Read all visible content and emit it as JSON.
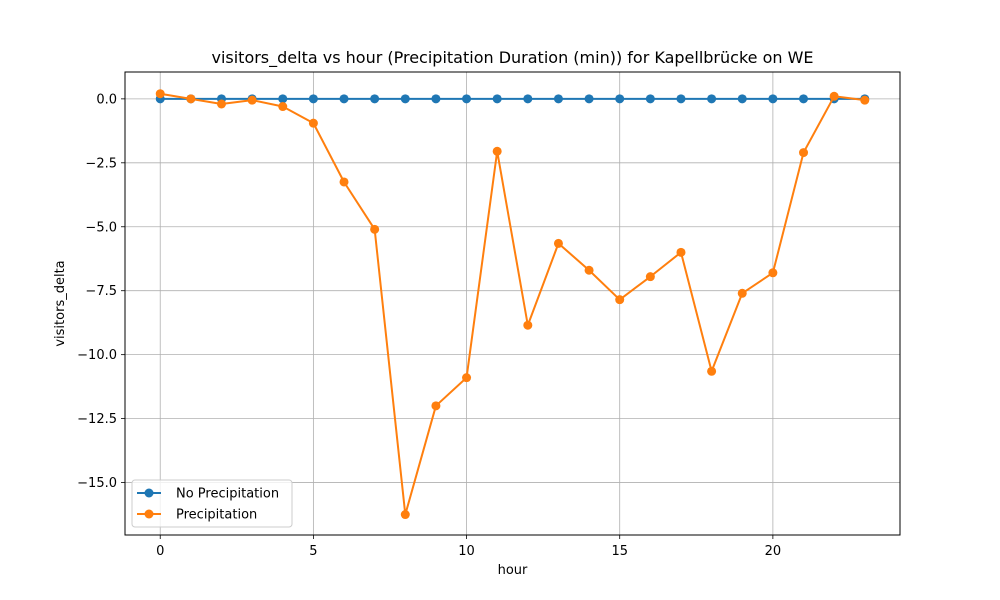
{
  "chart_data": {
    "type": "line",
    "title": "visitors_delta vs hour (Precipitation Duration (min)) for Kapellbrücke on WE",
    "xlabel": "hour",
    "ylabel": "visitors_delta",
    "xlim": [
      -1.15,
      24.15
    ],
    "ylim": [
      -17.05,
      1.05
    ],
    "xticks": [
      0,
      5,
      10,
      15,
      20
    ],
    "yticks": [
      0.0,
      -2.5,
      -5.0,
      -7.5,
      -10.0,
      -12.5,
      -15.0
    ],
    "xtick_labels": [
      "0",
      "5",
      "10",
      "15",
      "20"
    ],
    "ytick_labels": [
      "0.0",
      "−2.5",
      "−5.0",
      "−7.5",
      "−10.0",
      "−12.5",
      "−15.0"
    ],
    "grid": true,
    "legend_position": "lower-left",
    "x": [
      0,
      1,
      2,
      3,
      4,
      5,
      6,
      7,
      8,
      9,
      10,
      11,
      12,
      13,
      14,
      15,
      16,
      17,
      18,
      19,
      20,
      21,
      22,
      23
    ],
    "series": [
      {
        "name": "No Precipitation",
        "color": "#1f77b4",
        "marker": "circle",
        "values": [
          0,
          0,
          0,
          0,
          0,
          0,
          0,
          0,
          0,
          0,
          0,
          0,
          0,
          0,
          0,
          0,
          0,
          0,
          0,
          0,
          0,
          0,
          0,
          0
        ]
      },
      {
        "name": "Precipitation",
        "color": "#ff7f0e",
        "marker": "circle",
        "values": [
          0.2,
          0.0,
          -0.2,
          -0.05,
          -0.3,
          -0.95,
          -3.25,
          -5.1,
          -16.25,
          -12.0,
          -10.9,
          -2.05,
          -8.85,
          -5.65,
          -6.7,
          -7.85,
          -6.95,
          -6.0,
          -10.65,
          -7.6,
          -6.8,
          -2.1,
          0.1,
          -0.05
        ]
      }
    ]
  }
}
